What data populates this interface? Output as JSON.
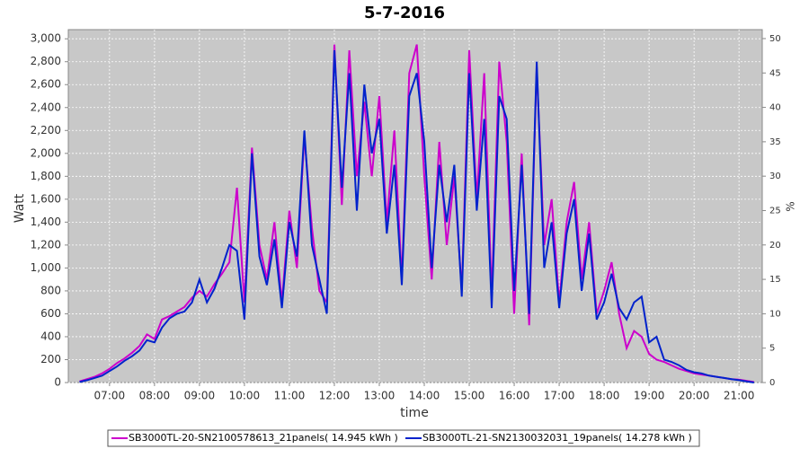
{
  "chart_data": {
    "type": "line",
    "title": "5-7-2016",
    "x_label": "time",
    "y_label": "Watt",
    "y2_label": "%",
    "x": [
      "06:20",
      "06:30",
      "06:40",
      "06:50",
      "07:00",
      "07:10",
      "07:20",
      "07:30",
      "07:40",
      "07:50",
      "08:00",
      "08:10",
      "08:20",
      "08:30",
      "08:40",
      "08:50",
      "09:00",
      "09:10",
      "09:20",
      "09:30",
      "09:40",
      "09:50",
      "10:00",
      "10:10",
      "10:20",
      "10:30",
      "10:40",
      "10:50",
      "11:00",
      "11:10",
      "11:20",
      "11:30",
      "11:40",
      "11:50",
      "12:00",
      "12:10",
      "12:20",
      "12:30",
      "12:40",
      "12:50",
      "13:00",
      "13:10",
      "13:20",
      "13:30",
      "13:40",
      "13:50",
      "14:00",
      "14:10",
      "14:20",
      "14:30",
      "14:40",
      "14:50",
      "15:00",
      "15:10",
      "15:20",
      "15:30",
      "15:40",
      "15:50",
      "16:00",
      "16:10",
      "16:20",
      "16:30",
      "16:40",
      "16:50",
      "17:00",
      "17:10",
      "17:20",
      "17:30",
      "17:40",
      "17:50",
      "18:00",
      "18:10",
      "18:20",
      "18:30",
      "18:40",
      "18:50",
      "19:00",
      "19:10",
      "19:20",
      "19:30",
      "19:40",
      "19:50",
      "20:00",
      "20:10",
      "20:20",
      "20:30",
      "20:40",
      "20:50",
      "21:00",
      "21:10",
      "21:20"
    ],
    "series": [
      {
        "name": "SB3000TL-20-SN2100578613_21panels( 14.945 kWh )",
        "color": "#cc00cc",
        "values": [
          10,
          30,
          50,
          80,
          120,
          170,
          210,
          260,
          320,
          420,
          380,
          550,
          580,
          620,
          660,
          740,
          800,
          750,
          860,
          950,
          1050,
          1700,
          700,
          2050,
          1200,
          900,
          1400,
          700,
          1500,
          1000,
          2150,
          1350,
          800,
          700,
          2950,
          1550,
          2900,
          1800,
          2450,
          1800,
          2500,
          1400,
          2200,
          900,
          2700,
          2950,
          1800,
          900,
          2100,
          1200,
          1800,
          800,
          2900,
          1600,
          2700,
          750,
          2800,
          2100,
          600,
          2000,
          500,
          2750,
          1200,
          1600,
          700,
          1400,
          1750,
          900,
          1400,
          600,
          800,
          1050,
          600,
          300,
          450,
          400,
          250,
          200,
          180,
          150,
          120,
          100,
          80,
          70,
          60,
          50,
          40,
          30,
          25,
          15,
          5
        ]
      },
      {
        "name": "SB3000TL-21-SN2130032031_19panels( 14.278 kWh )",
        "color": "#0022cc",
        "values": [
          5,
          20,
          40,
          60,
          100,
          140,
          190,
          230,
          280,
          370,
          350,
          480,
          560,
          600,
          620,
          700,
          900,
          700,
          820,
          1000,
          1200,
          1150,
          550,
          2000,
          1100,
          850,
          1250,
          650,
          1400,
          1100,
          2200,
          1200,
          900,
          600,
          2900,
          1700,
          2700,
          1500,
          2600,
          2000,
          2300,
          1300,
          1900,
          850,
          2500,
          2700,
          2100,
          1000,
          1900,
          1400,
          1900,
          750,
          2700,
          1500,
          2300,
          650,
          2500,
          2300,
          800,
          1900,
          600,
          2800,
          1000,
          1400,
          650,
          1300,
          1600,
          800,
          1300,
          550,
          700,
          950,
          650,
          550,
          700,
          750,
          350,
          400,
          200,
          180,
          150,
          110,
          90,
          80,
          60,
          50,
          40,
          30,
          20,
          10,
          0
        ]
      }
    ],
    "xlim": [
      "06:05",
      "21:31"
    ],
    "xticks": [
      "07:00",
      "08:00",
      "09:00",
      "10:00",
      "11:00",
      "12:00",
      "13:00",
      "14:00",
      "15:00",
      "16:00",
      "17:00",
      "18:00",
      "19:00",
      "20:00",
      "21:00"
    ],
    "ylim": [
      0,
      3080
    ],
    "yticks": [
      0,
      {
        "value": 200,
        "label": "200"
      },
      400,
      600,
      800,
      {
        "value": 1000,
        "label": "1,000"
      },
      {
        "value": 1200,
        "label": "1,200"
      },
      {
        "value": 1400,
        "label": "1,400"
      },
      {
        "value": 1600,
        "label": "1,600"
      },
      {
        "value": 1800,
        "label": "1,800"
      },
      {
        "value": 2000,
        "label": "2,000"
      },
      {
        "value": 2200,
        "label": "2,200"
      },
      {
        "value": 2400,
        "label": "2,400"
      },
      {
        "value": 2600,
        "label": "2,600"
      },
      {
        "value": 2800,
        "label": "2,800"
      },
      {
        "value": 3000,
        "label": "3,000"
      }
    ],
    "y2lim": [
      0,
      51.3
    ],
    "y2ticks": [
      0,
      5,
      10,
      15,
      20,
      25,
      30,
      35,
      40,
      45,
      50
    ],
    "grid": true
  }
}
